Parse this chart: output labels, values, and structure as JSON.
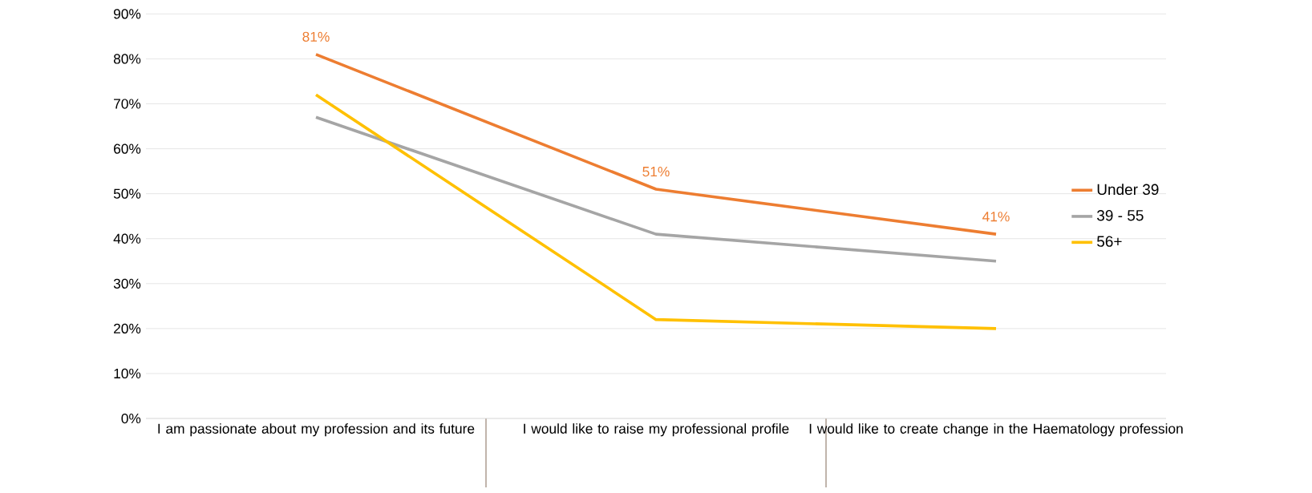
{
  "chart_data": {
    "type": "line",
    "categories": [
      "I am passionate about my profession and its future",
      "I would like to raise my professional profile",
      "I would like to create change in the Haematology profession"
    ],
    "series": [
      {
        "name": "Under 39",
        "color": "#ed7d31",
        "values": [
          81,
          51,
          41
        ],
        "value_labels": [
          "81%",
          "51%",
          "41%"
        ]
      },
      {
        "name": "39 - 55",
        "color": "#a5a5a5",
        "values": [
          67,
          41,
          35
        ]
      },
      {
        "name": "56+",
        "color": "#ffc000",
        "values": [
          72,
          22,
          20
        ]
      }
    ],
    "ylim": [
      0,
      90
    ],
    "yticks": [
      {
        "value": 0,
        "label": "0%"
      },
      {
        "value": 10,
        "label": "10%"
      },
      {
        "value": 20,
        "label": "20%"
      },
      {
        "value": 30,
        "label": "30%"
      },
      {
        "value": 40,
        "label": "40%"
      },
      {
        "value": 50,
        "label": "50%"
      },
      {
        "value": 60,
        "label": "60%"
      },
      {
        "value": 70,
        "label": "70%"
      },
      {
        "value": 80,
        "label": "80%"
      },
      {
        "value": 90,
        "label": "90%"
      }
    ],
    "grid": "y",
    "legend": "right",
    "marker": "none",
    "line_style": "solid"
  }
}
